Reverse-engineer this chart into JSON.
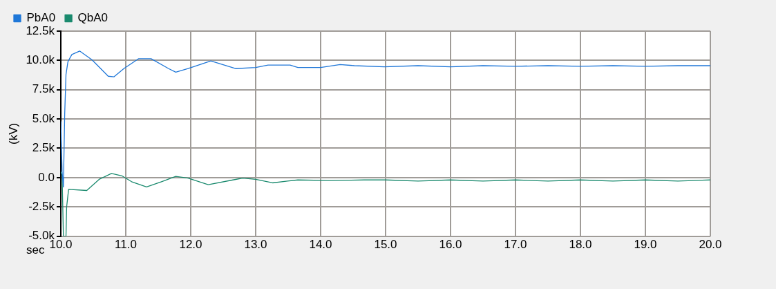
{
  "chart_data": {
    "type": "line",
    "xlabel": "sec",
    "ylabel": "(kV)",
    "legend": "top",
    "grid": true,
    "marker": "none",
    "xlim": [
      10,
      20
    ],
    "ylim": [
      -5000,
      12500
    ],
    "xticks": [
      {
        "value": 10,
        "label": "10.0"
      },
      {
        "value": 11,
        "label": "11.0"
      },
      {
        "value": 12,
        "label": "12.0"
      },
      {
        "value": 13,
        "label": "13.0"
      },
      {
        "value": 14,
        "label": "14.0"
      },
      {
        "value": 15,
        "label": "15.0"
      },
      {
        "value": 16,
        "label": "16.0"
      },
      {
        "value": 17,
        "label": "17.0"
      },
      {
        "value": 18,
        "label": "18.0"
      },
      {
        "value": 19,
        "label": "19.0"
      },
      {
        "value": 20,
        "label": "20.0"
      }
    ],
    "yticks": [
      {
        "value": -5000,
        "label": "-5.0k"
      },
      {
        "value": -2500,
        "label": "-2.5k"
      },
      {
        "value": 0,
        "label": "0.0"
      },
      {
        "value": 2500,
        "label": "2.5k"
      },
      {
        "value": 5000,
        "label": "5.0k"
      },
      {
        "value": 7500,
        "label": "7.5k"
      },
      {
        "value": 10000,
        "label": "10.0k"
      },
      {
        "value": 12500,
        "label": "12.5k"
      }
    ],
    "series": [
      {
        "name": "PbA0",
        "color": "#1f77d8",
        "x": [
          10,
          10.02,
          10.04,
          10.06,
          10.08,
          10.11,
          10.17,
          10.29,
          10.48,
          10.73,
          10.82,
          10.97,
          11.2,
          11.39,
          11.66,
          11.77,
          11.96,
          12.31,
          12.69,
          13.0,
          13.19,
          13.53,
          13.65,
          14.0,
          14.3,
          14.52,
          14.98,
          15.5,
          16.0,
          16.5,
          17.0,
          17.5,
          18.0,
          18.5,
          19.0,
          19.5,
          20.0
        ],
        "values": [
          4800,
          500,
          -800,
          5400,
          8800,
          9900,
          10500,
          10800,
          10050,
          8650,
          8600,
          9300,
          10150,
          10150,
          9300,
          9000,
          9300,
          9950,
          9300,
          9400,
          9600,
          9600,
          9400,
          9400,
          9650,
          9550,
          9450,
          9550,
          9450,
          9550,
          9500,
          9550,
          9500,
          9550,
          9500,
          9550,
          9550
        ]
      },
      {
        "name": "QbA0",
        "color": "#1a8a6e",
        "x": [
          10,
          10.02,
          10.04,
          10.08,
          10.09,
          10.12,
          10.4,
          10.59,
          10.78,
          10.94,
          11.09,
          11.32,
          11.55,
          11.77,
          11.96,
          12.27,
          12.65,
          12.8,
          13.0,
          13.26,
          13.49,
          13.65,
          14.14,
          14.67,
          15.0,
          15.5,
          16.0,
          16.5,
          17.0,
          17.5,
          18.0,
          18.5,
          19.0,
          19.5,
          20.0
        ],
        "values": [
          500,
          200,
          -5000,
          -5000,
          -2500,
          -1000,
          -1100,
          -150,
          350,
          150,
          -350,
          -800,
          -350,
          100,
          -50,
          -600,
          -200,
          -50,
          -150,
          -450,
          -300,
          -200,
          -250,
          -200,
          -200,
          -300,
          -200,
          -300,
          -200,
          -300,
          -200,
          -300,
          -200,
          -300,
          -200
        ]
      }
    ]
  }
}
